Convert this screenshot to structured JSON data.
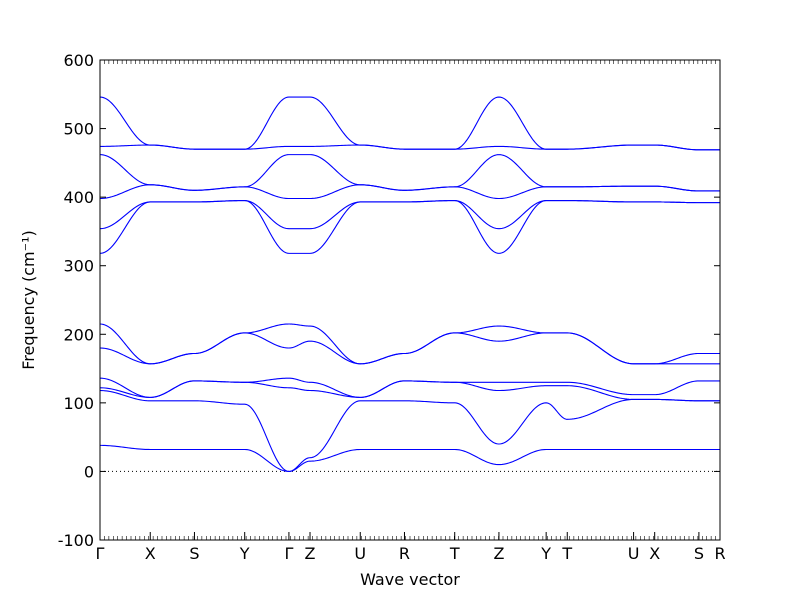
{
  "chart_data": {
    "type": "line",
    "xlabel": "Wave vector",
    "ylabel": "Frequency (cm⁻¹)",
    "ylim": [
      -100,
      600
    ],
    "yticks": [
      -100,
      0,
      100,
      200,
      300,
      400,
      500,
      600
    ],
    "x_segments": [
      "Γ–X",
      "X–S",
      "S–Y",
      "Y–Γ",
      "Γ–Z",
      "Z–U",
      "U–R",
      "R–T",
      "T–Z",
      "Z–Y",
      "Y–T",
      "T–U",
      "U–X",
      "X–S",
      "S–R"
    ],
    "high_symmetry_points": [
      {
        "label": "Γ",
        "x": 0.0
      },
      {
        "label": "X",
        "x": 1.0
      },
      {
        "label": "S",
        "x": 1.88
      },
      {
        "label": "Y",
        "x": 2.88
      },
      {
        "label": "Γ",
        "x": 3.76
      },
      {
        "label": "Z",
        "x": 4.18
      },
      {
        "label": "U",
        "x": 5.18
      },
      {
        "label": "R",
        "x": 6.06
      },
      {
        "label": "T",
        "x": 7.06
      },
      {
        "label": "Z",
        "x": 7.94
      },
      {
        "label": "Y",
        "x": 8.88
      },
      {
        "label": "T",
        "x": 9.3
      },
      {
        "label": "U",
        "x": 10.62
      },
      {
        "label": "X",
        "x": 11.04
      },
      {
        "label": "S",
        "x": 11.92
      },
      {
        "label": "R",
        "x": 12.34
      }
    ],
    "zero_line": 0,
    "line_color": "#0000ff",
    "band_nodes_note": "values at each high-symmetry point for the 12 optical/acoustic branches",
    "bands": [
      [
        546,
        476,
        470,
        470,
        546,
        546,
        476,
        470,
        470,
        546,
        470,
        470,
        476,
        476,
        469,
        469
      ],
      [
        474,
        476,
        470,
        470,
        474,
        474,
        476,
        470,
        470,
        474,
        470,
        470,
        476,
        476,
        469,
        469
      ],
      [
        462,
        418,
        410,
        415,
        462,
        462,
        418,
        410,
        415,
        462,
        415,
        415,
        416,
        416,
        409,
        409
      ],
      [
        398,
        418,
        410,
        415,
        398,
        398,
        418,
        410,
        415,
        398,
        415,
        415,
        416,
        416,
        409,
        409
      ],
      [
        354,
        393,
        393,
        395,
        354,
        354,
        393,
        393,
        395,
        354,
        395,
        395,
        393,
        393,
        392,
        392
      ],
      [
        318,
        393,
        393,
        395,
        318,
        318,
        393,
        393,
        395,
        318,
        395,
        395,
        393,
        393,
        392,
        392
      ],
      [
        215,
        157,
        172,
        202,
        215,
        212,
        157,
        172,
        202,
        212,
        202,
        202,
        157,
        157,
        172,
        172
      ],
      [
        180,
        157,
        172,
        202,
        180,
        190,
        157,
        172,
        202,
        190,
        202,
        202,
        157,
        157,
        157,
        157
      ],
      [
        136,
        108,
        132,
        130,
        136,
        130,
        108,
        132,
        130,
        130,
        130,
        130,
        112,
        112,
        132,
        132
      ],
      [
        122,
        108,
        132,
        130,
        122,
        118,
        108,
        132,
        130,
        118,
        125,
        125,
        105,
        105,
        103,
        103
      ],
      [
        118,
        103,
        103,
        98,
        0,
        20,
        103,
        103,
        100,
        40,
        100,
        76,
        105,
        105,
        103,
        103
      ],
      [
        38,
        32,
        32,
        32,
        0,
        15,
        32,
        32,
        32,
        10,
        32,
        32,
        32,
        32,
        32,
        32
      ]
    ]
  }
}
